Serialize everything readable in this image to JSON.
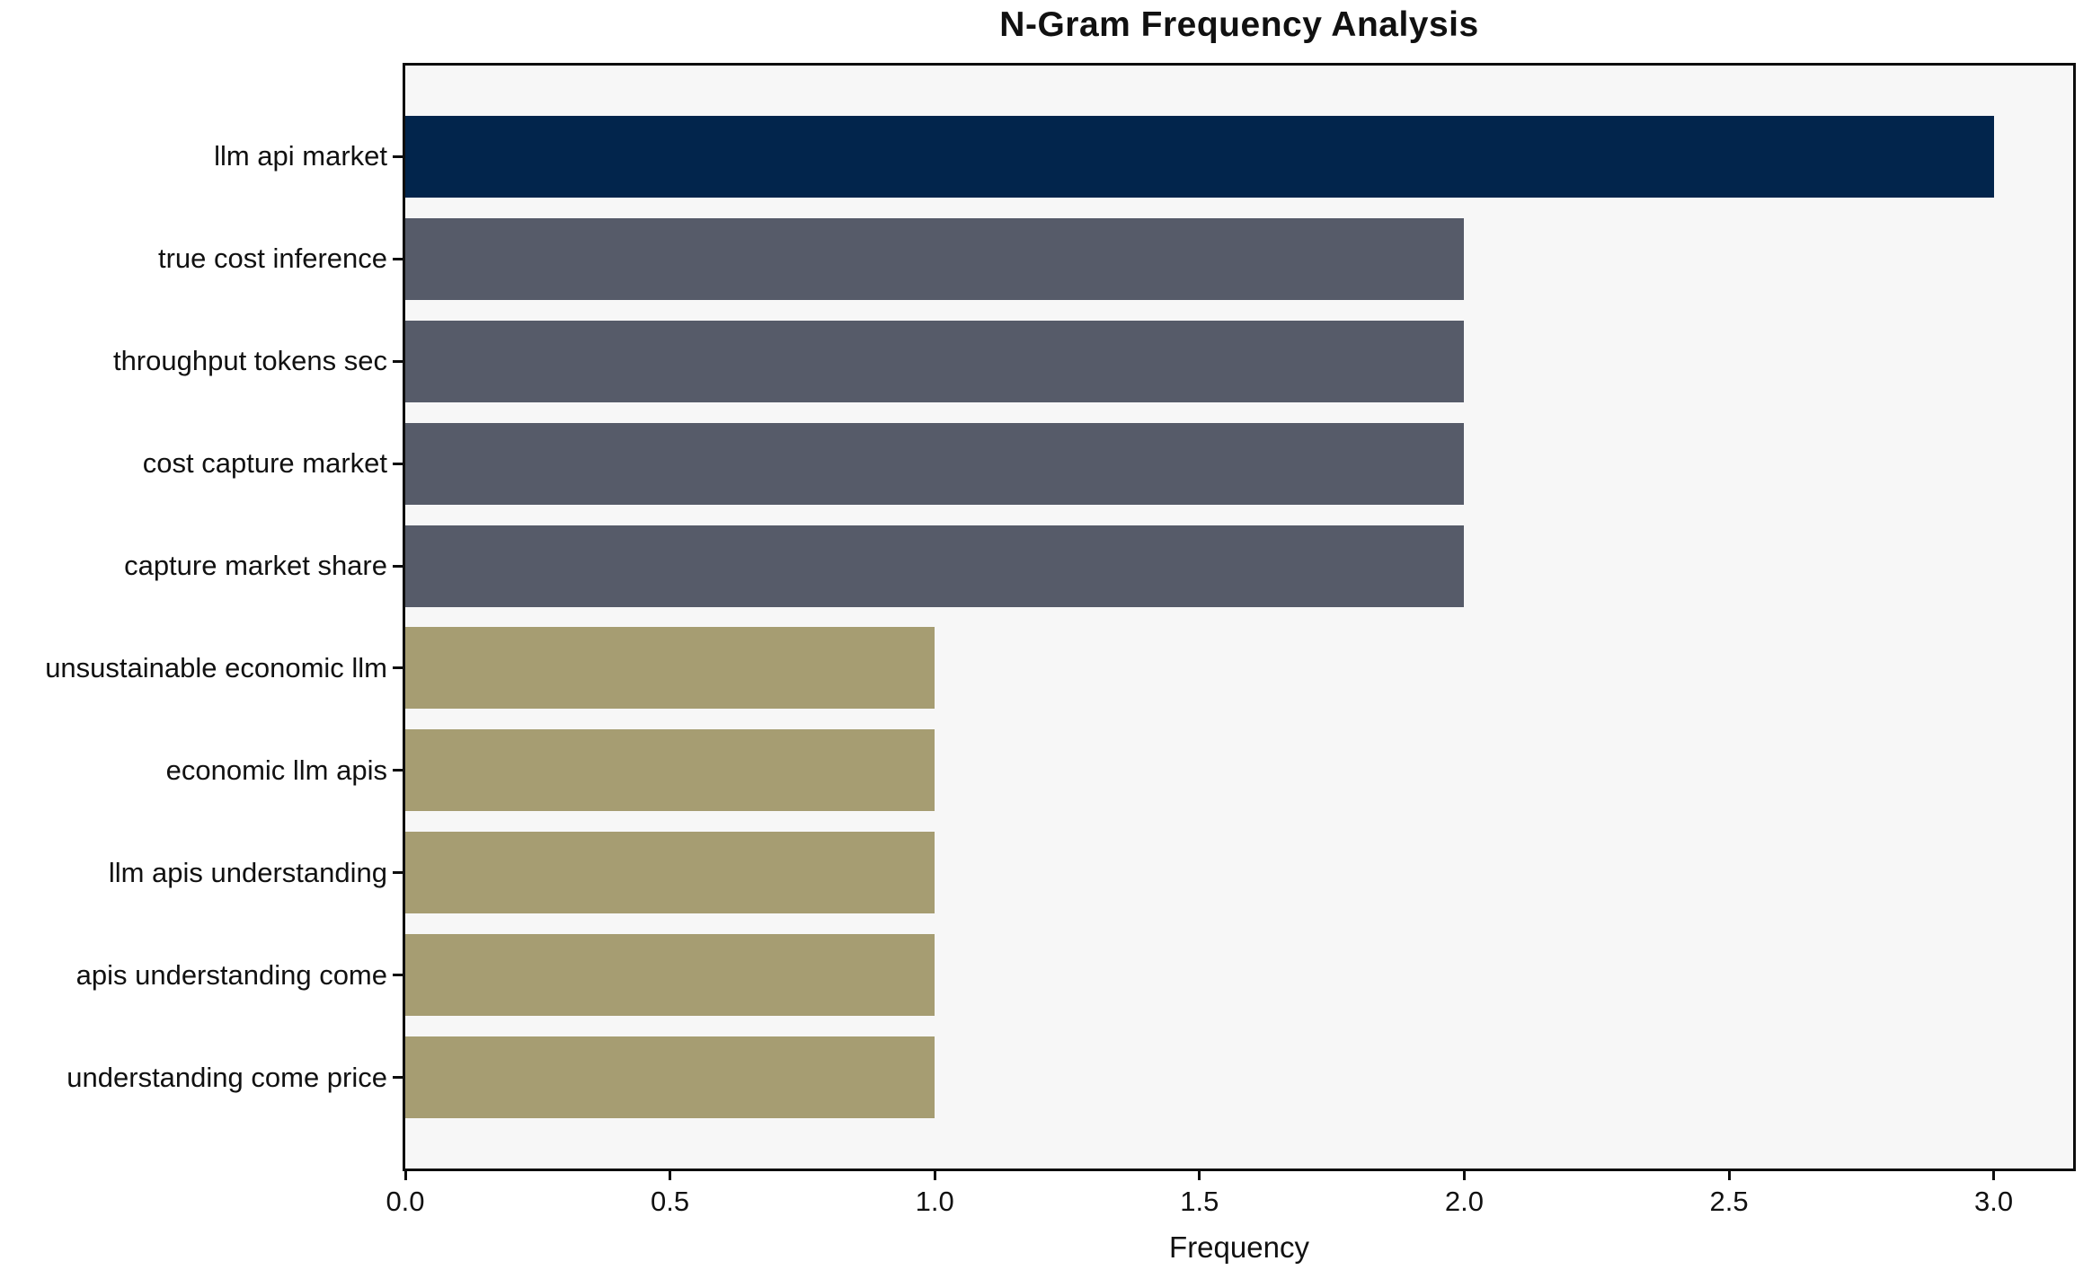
{
  "chart_data": {
    "type": "bar",
    "orientation": "horizontal",
    "title": "N-Gram Frequency Analysis",
    "xlabel": "Frequency",
    "ylabel": "",
    "categories": [
      "llm api market",
      "true cost inference",
      "throughput tokens sec",
      "cost capture market",
      "capture market share",
      "unsustainable economic llm",
      "economic llm apis",
      "llm apis understanding",
      "apis understanding come",
      "understanding come price"
    ],
    "values": [
      3,
      2,
      2,
      2,
      2,
      1,
      1,
      1,
      1,
      1
    ],
    "bar_colors": [
      "#02254c",
      "#565b69",
      "#565b69",
      "#565b69",
      "#565b69",
      "#a69d72",
      "#a69d72",
      "#a69d72",
      "#a69d72",
      "#a69d72"
    ],
    "xlim": [
      0,
      3.15
    ],
    "x_tick_labels": [
      "0.0",
      "0.5",
      "1.0",
      "1.5",
      "2.0",
      "2.5",
      "3.0"
    ],
    "x_tick_values": [
      0,
      0.5,
      1,
      1.5,
      2,
      2.5,
      3
    ],
    "grid": false,
    "legend": null,
    "colors": {
      "figure_bg": "#ffffff",
      "plot_bg": "#f7f7f7",
      "axis": "#0d0d0d",
      "max_bar": "#02254c",
      "mid_bar": "#565b69",
      "base_bar": "#a69d72"
    }
  }
}
